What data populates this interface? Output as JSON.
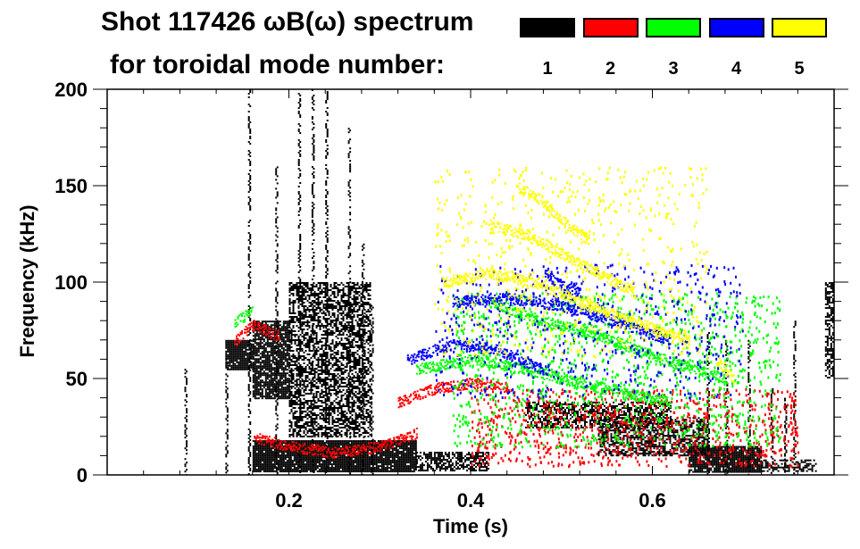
{
  "chart_data": {
    "type": "heatmap",
    "title_line1": "Shot 117426 ωB(ω) spectrum",
    "title_line2": "for toroidal mode number:",
    "xlabel": "Time (s)",
    "ylabel": "Frequency (kHz)",
    "xlim": [
      0.0,
      0.8
    ],
    "ylim": [
      0,
      200
    ],
    "x_ticks": [
      0.2,
      0.4,
      0.6
    ],
    "x_tick_labels": [
      "0.2",
      "0.4",
      "0.6"
    ],
    "x_minor_step": 0.04,
    "y_ticks": [
      0,
      50,
      100,
      150,
      200
    ],
    "y_tick_labels": [
      "0",
      "50",
      "100",
      "150",
      "200"
    ],
    "y_minor_step": 10,
    "grid": false,
    "legend_placement": "top-right",
    "legend": [
      {
        "label": "1",
        "color": "#000000"
      },
      {
        "label": "2",
        "color": "#ff0000"
      },
      {
        "label": "3",
        "color": "#00ff00"
      },
      {
        "label": "4",
        "color": "#0000ff"
      },
      {
        "label": "5",
        "color": "#ffff00"
      }
    ],
    "series": [
      {
        "name": "n=1",
        "color": "#000000",
        "bands": [
          {
            "t": [
              0.13,
              0.16
            ],
            "f": [
              55,
              70
            ],
            "density": 0.9
          },
          {
            "t": [
              0.16,
              0.2
            ],
            "f": [
              40,
              80
            ],
            "density": 0.8
          },
          {
            "t": [
              0.16,
              0.34
            ],
            "f": [
              2,
              18
            ],
            "density": 0.95
          },
          {
            "t": [
              0.2,
              0.29
            ],
            "f": [
              20,
              100
            ],
            "density": 0.55
          },
          {
            "t": [
              0.34,
              0.42
            ],
            "f": [
              2,
              12
            ],
            "density": 0.6
          },
          {
            "t": [
              0.46,
              0.62
            ],
            "f": [
              25,
              38
            ],
            "density": 0.5
          },
          {
            "t": [
              0.54,
              0.66
            ],
            "f": [
              10,
              30
            ],
            "density": 0.55
          },
          {
            "t": [
              0.64,
              0.72
            ],
            "f": [
              2,
              15
            ],
            "density": 0.9
          },
          {
            "t": [
              0.72,
              0.78
            ],
            "f": [
              2,
              8
            ],
            "density": 0.5
          },
          {
            "t": [
              0.79,
              0.8
            ],
            "f": [
              50,
              100
            ],
            "density": 0.6
          }
        ],
        "spikes": [
          {
            "t": 0.085,
            "f": [
              0,
              55
            ]
          },
          {
            "t": 0.13,
            "f": [
              0,
              60
            ]
          },
          {
            "t": 0.155,
            "f": [
              0,
              200
            ]
          },
          {
            "t": 0.185,
            "f": [
              0,
              160
            ]
          },
          {
            "t": 0.21,
            "f": [
              0,
              200
            ]
          },
          {
            "t": 0.225,
            "f": [
              0,
              200
            ]
          },
          {
            "t": 0.24,
            "f": [
              0,
              200
            ]
          },
          {
            "t": 0.265,
            "f": [
              0,
              180
            ]
          },
          {
            "t": 0.28,
            "f": [
              0,
              120
            ]
          },
          {
            "t": 0.29,
            "f": [
              0,
              90
            ]
          },
          {
            "t": 0.66,
            "f": [
              0,
              75
            ]
          },
          {
            "t": 0.68,
            "f": [
              0,
              70
            ]
          },
          {
            "t": 0.705,
            "f": [
              0,
              70
            ]
          },
          {
            "t": 0.73,
            "f": [
              0,
              45
            ]
          },
          {
            "t": 0.745,
            "f": [
              0,
              40
            ]
          },
          {
            "t": 0.755,
            "f": [
              0,
              80
            ]
          }
        ]
      },
      {
        "name": "n=2",
        "color": "#ff0000",
        "curves": [
          {
            "t": [
              0.16,
              0.2,
              0.25,
              0.3,
              0.34
            ],
            "f": [
              20,
              15,
              12,
              15,
              22
            ]
          },
          {
            "t": [
              0.32,
              0.36,
              0.4,
              0.44
            ],
            "f": [
              38,
              45,
              48,
              46
            ]
          },
          {
            "t": [
              0.14,
              0.16,
              0.19
            ],
            "f": [
              70,
              78,
              72
            ]
          }
        ],
        "scatter_region": {
          "t": [
            0.4,
            0.76
          ],
          "f": [
            5,
            45
          ],
          "density": 0.12
        }
      },
      {
        "name": "n=3",
        "color": "#00ff00",
        "curves": [
          {
            "t": [
              0.34,
              0.4,
              0.46,
              0.52,
              0.58,
              0.62
            ],
            "f": [
              55,
              60,
              55,
              48,
              42,
              38
            ]
          },
          {
            "t": [
              0.42,
              0.48,
              0.54,
              0.6,
              0.68
            ],
            "f": [
              90,
              80,
              73,
              62,
              50
            ]
          },
          {
            "t": [
              0.14,
              0.16
            ],
            "f": [
              80,
              85
            ]
          }
        ],
        "scatter_region": {
          "t": [
            0.38,
            0.74
          ],
          "f": [
            15,
            95
          ],
          "density": 0.08
        }
      },
      {
        "name": "n=4",
        "color": "#0000ff",
        "curves": [
          {
            "t": [
              0.33,
              0.38,
              0.43,
              0.48
            ],
            "f": [
              60,
              68,
              65,
              55
            ]
          },
          {
            "t": [
              0.38,
              0.44,
              0.5,
              0.56,
              0.62
            ],
            "f": [
              90,
              92,
              88,
              80,
              70
            ]
          },
          {
            "t": [
              0.48,
              0.5,
              0.52
            ],
            "f": [
              105,
              98,
              95
            ]
          }
        ],
        "scatter_region": {
          "t": [
            0.36,
            0.7
          ],
          "f": [
            40,
            110
          ],
          "density": 0.05
        }
      },
      {
        "name": "n=5",
        "color": "#ffff00",
        "curves": [
          {
            "t": [
              0.45,
              0.48,
              0.5,
              0.53
            ],
            "f": [
              150,
              142,
              132,
              122
            ]
          },
          {
            "t": [
              0.42,
              0.46,
              0.5,
              0.54,
              0.58
            ],
            "f": [
              130,
              125,
              115,
              105,
              95
            ]
          },
          {
            "t": [
              0.37,
              0.42,
              0.47,
              0.52,
              0.58,
              0.64
            ],
            "f": [
              100,
              105,
              100,
              90,
              80,
              70
            ]
          },
          {
            "t": [
              0.67,
              0.68,
              0.69
            ],
            "f": [
              60,
              55,
              50
            ]
          }
        ],
        "scatter_region": {
          "t": [
            0.36,
            0.66
          ],
          "f": [
            60,
            160
          ],
          "density": 0.04
        }
      }
    ]
  }
}
